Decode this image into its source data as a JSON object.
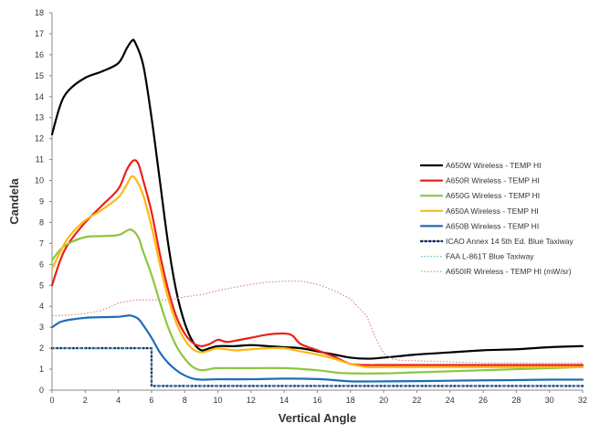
{
  "chart_data": {
    "type": "line",
    "xlabel": "Vertical Angle",
    "ylabel": "Candela",
    "xlim": [
      0,
      32
    ],
    "ylim": [
      0,
      18
    ],
    "xticks": [
      0,
      2,
      4,
      6,
      8,
      10,
      12,
      14,
      16,
      18,
      20,
      22,
      24,
      26,
      28,
      30,
      32
    ],
    "yticks": [
      0,
      1,
      2,
      3,
      4,
      5,
      6,
      7,
      8,
      9,
      10,
      11,
      12,
      13,
      14,
      15,
      16,
      17,
      18
    ],
    "grid": false,
    "legend_position": "right",
    "series": [
      {
        "name": "A650W Wireless - TEMP HI",
        "color": "#000000",
        "style": "solid",
        "points": [
          [
            0,
            12.2
          ],
          [
            0.5,
            13.6
          ],
          [
            1,
            14.3
          ],
          [
            2,
            14.9
          ],
          [
            3,
            15.2
          ],
          [
            4,
            15.6
          ],
          [
            4.5,
            16.3
          ],
          [
            4.8,
            16.65
          ],
          [
            5,
            16.6
          ],
          [
            5.5,
            15.5
          ],
          [
            6,
            13.0
          ],
          [
            6.5,
            10.0
          ],
          [
            7,
            7.0
          ],
          [
            7.5,
            4.7
          ],
          [
            8,
            3.2
          ],
          [
            8.5,
            2.3
          ],
          [
            9,
            1.9
          ],
          [
            9.5,
            2.0
          ],
          [
            10,
            2.1
          ],
          [
            11,
            2.1
          ],
          [
            12,
            2.15
          ],
          [
            13,
            2.1
          ],
          [
            14,
            2.05
          ],
          [
            15,
            2.0
          ],
          [
            16,
            1.85
          ],
          [
            17,
            1.7
          ],
          [
            18,
            1.55
          ],
          [
            19,
            1.5
          ],
          [
            20,
            1.55
          ],
          [
            22,
            1.7
          ],
          [
            24,
            1.8
          ],
          [
            26,
            1.9
          ],
          [
            28,
            1.95
          ],
          [
            30,
            2.05
          ],
          [
            32,
            2.1
          ]
        ]
      },
      {
        "name": "A650R Wireless - TEMP HI",
        "color": "#e8211a",
        "style": "solid",
        "points": [
          [
            0,
            5.0
          ],
          [
            0.5,
            6.2
          ],
          [
            1,
            7.0
          ],
          [
            2,
            8.0
          ],
          [
            3,
            8.8
          ],
          [
            4,
            9.6
          ],
          [
            4.5,
            10.5
          ],
          [
            4.9,
            10.95
          ],
          [
            5.2,
            10.8
          ],
          [
            5.5,
            10.0
          ],
          [
            6,
            8.5
          ],
          [
            6.5,
            6.5
          ],
          [
            7,
            4.8
          ],
          [
            7.5,
            3.5
          ],
          [
            8,
            2.7
          ],
          [
            8.5,
            2.25
          ],
          [
            9,
            2.1
          ],
          [
            9.5,
            2.2
          ],
          [
            10,
            2.4
          ],
          [
            10.5,
            2.3
          ],
          [
            11,
            2.35
          ],
          [
            12,
            2.5
          ],
          [
            13,
            2.65
          ],
          [
            14,
            2.7
          ],
          [
            14.5,
            2.6
          ],
          [
            15,
            2.2
          ],
          [
            16,
            1.9
          ],
          [
            17,
            1.6
          ],
          [
            18,
            1.25
          ],
          [
            19,
            1.2
          ],
          [
            20,
            1.2
          ],
          [
            22,
            1.2
          ],
          [
            24,
            1.2
          ],
          [
            26,
            1.2
          ],
          [
            28,
            1.2
          ],
          [
            30,
            1.2
          ],
          [
            32,
            1.2
          ]
        ]
      },
      {
        "name": "A650G Wireless - TEMP HI",
        "color": "#8dc63f",
        "style": "solid",
        "points": [
          [
            0,
            6.2
          ],
          [
            0.5,
            6.7
          ],
          [
            1,
            7.0
          ],
          [
            2,
            7.3
          ],
          [
            3,
            7.35
          ],
          [
            4,
            7.4
          ],
          [
            4.5,
            7.6
          ],
          [
            4.8,
            7.65
          ],
          [
            5.2,
            7.3
          ],
          [
            5.5,
            6.6
          ],
          [
            6,
            5.5
          ],
          [
            6.5,
            4.2
          ],
          [
            7,
            3.0
          ],
          [
            7.5,
            2.1
          ],
          [
            8,
            1.5
          ],
          [
            8.5,
            1.1
          ],
          [
            9,
            0.95
          ],
          [
            9.5,
            1.0
          ],
          [
            10,
            1.05
          ],
          [
            12,
            1.05
          ],
          [
            14,
            1.05
          ],
          [
            16,
            0.95
          ],
          [
            17,
            0.85
          ],
          [
            18,
            0.8
          ],
          [
            20,
            0.8
          ],
          [
            22,
            0.85
          ],
          [
            24,
            0.9
          ],
          [
            26,
            0.95
          ],
          [
            28,
            1.0
          ],
          [
            30,
            1.05
          ],
          [
            32,
            1.1
          ]
        ]
      },
      {
        "name": "A650A Wireless - TEMP HI",
        "color": "#fdb913",
        "style": "solid",
        "points": [
          [
            0,
            5.8
          ],
          [
            0.5,
            6.6
          ],
          [
            1,
            7.3
          ],
          [
            2,
            8.1
          ],
          [
            3,
            8.6
          ],
          [
            4,
            9.2
          ],
          [
            4.5,
            9.8
          ],
          [
            4.8,
            10.2
          ],
          [
            5.1,
            10.0
          ],
          [
            5.5,
            9.3
          ],
          [
            6,
            7.8
          ],
          [
            6.5,
            6.0
          ],
          [
            7,
            4.4
          ],
          [
            7.5,
            3.2
          ],
          [
            8,
            2.4
          ],
          [
            8.5,
            1.95
          ],
          [
            9,
            1.8
          ],
          [
            9.5,
            1.9
          ],
          [
            10,
            2.0
          ],
          [
            11,
            1.9
          ],
          [
            12,
            1.95
          ],
          [
            13,
            2.0
          ],
          [
            14,
            2.0
          ],
          [
            15,
            1.85
          ],
          [
            16,
            1.7
          ],
          [
            17,
            1.5
          ],
          [
            18,
            1.25
          ],
          [
            19,
            1.1
          ],
          [
            20,
            1.1
          ],
          [
            22,
            1.1
          ],
          [
            24,
            1.1
          ],
          [
            26,
            1.1
          ],
          [
            28,
            1.1
          ],
          [
            30,
            1.1
          ],
          [
            32,
            1.1
          ]
        ]
      },
      {
        "name": "A650B Wireless - TEMP HI",
        "color": "#1f6db5",
        "style": "solid",
        "points": [
          [
            0,
            3.0
          ],
          [
            0.5,
            3.25
          ],
          [
            1,
            3.35
          ],
          [
            2,
            3.45
          ],
          [
            3,
            3.48
          ],
          [
            4,
            3.5
          ],
          [
            4.5,
            3.55
          ],
          [
            4.8,
            3.55
          ],
          [
            5.2,
            3.4
          ],
          [
            5.5,
            3.1
          ],
          [
            6,
            2.5
          ],
          [
            6.5,
            1.8
          ],
          [
            7,
            1.3
          ],
          [
            7.5,
            0.95
          ],
          [
            8,
            0.7
          ],
          [
            8.5,
            0.55
          ],
          [
            9,
            0.5
          ],
          [
            10,
            0.52
          ],
          [
            12,
            0.52
          ],
          [
            14,
            0.55
          ],
          [
            16,
            0.53
          ],
          [
            17,
            0.48
          ],
          [
            18,
            0.42
          ],
          [
            20,
            0.42
          ],
          [
            22,
            0.43
          ],
          [
            24,
            0.45
          ],
          [
            26,
            0.47
          ],
          [
            28,
            0.48
          ],
          [
            30,
            0.5
          ],
          [
            32,
            0.5
          ]
        ]
      },
      {
        "name": "ICAO Annex 14 5th Ed. Blue Taxiway",
        "color": "#1a2b6b",
        "style": "dotted-bold",
        "points": [
          [
            0,
            2.0
          ],
          [
            6,
            2.0
          ],
          [
            6,
            0.2
          ],
          [
            32,
            0.2
          ]
        ]
      },
      {
        "name": "FAA L-861T Blue Taxiway",
        "color": "#5bc2c8",
        "style": "dotted",
        "points": [
          [
            0,
            2.0
          ],
          [
            6,
            2.0
          ],
          [
            6,
            0.2
          ],
          [
            32,
            0.2
          ]
        ]
      },
      {
        "name": "A650IR Wireless - TEMP HI (mW/sr)",
        "color": "#d98b8b",
        "style": "dotted",
        "points": [
          [
            0,
            3.55
          ],
          [
            1,
            3.58
          ],
          [
            2,
            3.65
          ],
          [
            3,
            3.8
          ],
          [
            4,
            4.15
          ],
          [
            5,
            4.3
          ],
          [
            6,
            4.3
          ],
          [
            7,
            4.3
          ],
          [
            8,
            4.45
          ],
          [
            9,
            4.55
          ],
          [
            10,
            4.75
          ],
          [
            11,
            4.9
          ],
          [
            12,
            5.05
          ],
          [
            13,
            5.15
          ],
          [
            14,
            5.2
          ],
          [
            15,
            5.2
          ],
          [
            16,
            5.05
          ],
          [
            17,
            4.75
          ],
          [
            18,
            4.35
          ],
          [
            19,
            3.5
          ],
          [
            19.5,
            2.5
          ],
          [
            20,
            1.75
          ],
          [
            20.5,
            1.5
          ],
          [
            21,
            1.42
          ],
          [
            22,
            1.4
          ],
          [
            24,
            1.35
          ],
          [
            26,
            1.3
          ],
          [
            28,
            1.3
          ],
          [
            30,
            1.3
          ],
          [
            32,
            1.3
          ]
        ]
      }
    ]
  }
}
